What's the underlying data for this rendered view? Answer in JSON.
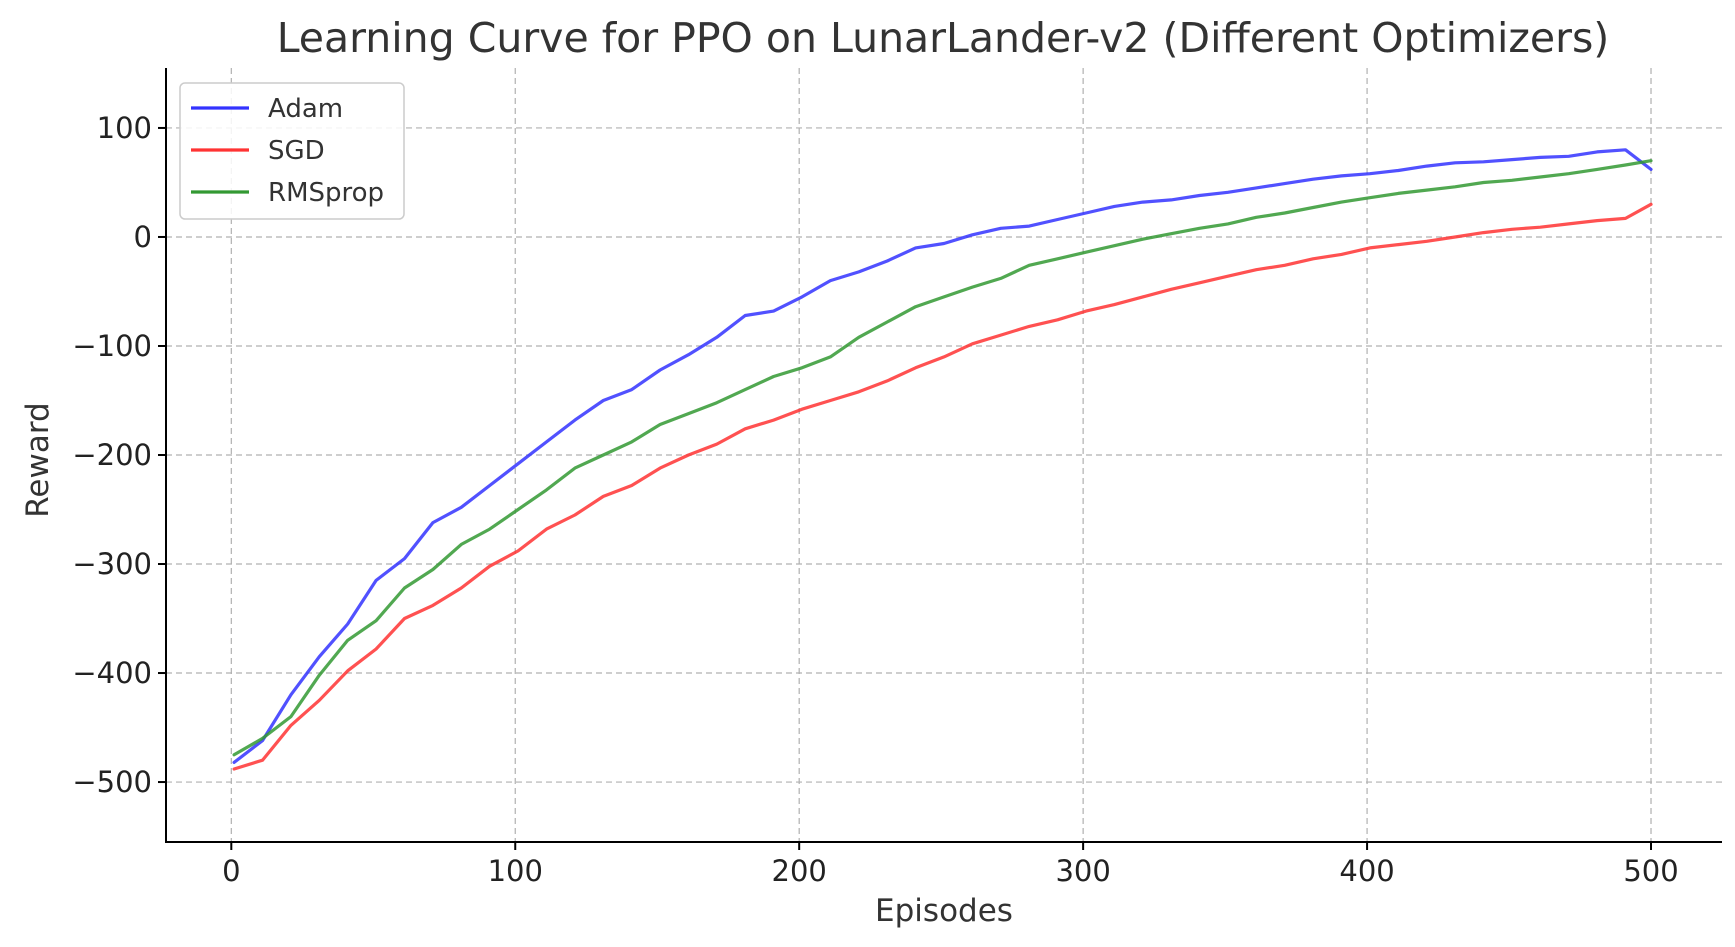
{
  "chart_data": {
    "type": "line",
    "title": "Learning Curve for PPO on LunarLander-v2 (Different Optimizers)",
    "xlabel": "Episodes",
    "ylabel": "Reward",
    "xlim": [
      -23,
      525
    ],
    "ylim": [
      -555,
      155
    ],
    "xticks": [
      0,
      100,
      200,
      300,
      400,
      500
    ],
    "yticks": [
      -500,
      -400,
      -300,
      -200,
      -100,
      0,
      100
    ],
    "xtick_labels": [
      "0",
      "100",
      "200",
      "300",
      "400",
      "500"
    ],
    "ytick_labels": [
      "−500",
      "−400",
      "−300",
      "−200",
      "−100",
      "0",
      "100"
    ],
    "grid": true,
    "legend": "top-left",
    "x": [
      1,
      11,
      21,
      31,
      41,
      51,
      61,
      71,
      81,
      91,
      101,
      111,
      121,
      131,
      141,
      151,
      161,
      171,
      181,
      191,
      201,
      211,
      221,
      231,
      241,
      251,
      261,
      271,
      281,
      291,
      301,
      311,
      321,
      331,
      341,
      351,
      361,
      371,
      381,
      391,
      401,
      411,
      421,
      431,
      441,
      451,
      461,
      471,
      481,
      491,
      500
    ],
    "series": [
      {
        "name": "Adam",
        "color": "#3333ff",
        "values": [
          -482,
          -462,
          -420,
          -385,
          -355,
          -315,
          -295,
          -262,
          -248,
          -228,
          -208,
          -188,
          -168,
          -150,
          -140,
          -122,
          -108,
          -92,
          -72,
          -68,
          -55,
          -40,
          -32,
          -22,
          -10,
          -6,
          2,
          8,
          10,
          16,
          22,
          28,
          32,
          34,
          38,
          41,
          45,
          49,
          53,
          56,
          58,
          61,
          65,
          68,
          69,
          71,
          73,
          74,
          78,
          80,
          62
        ]
      },
      {
        "name": "SGD",
        "color": "#ff3333",
        "values": [
          -488,
          -480,
          -448,
          -425,
          -398,
          -378,
          -350,
          -338,
          -322,
          -302,
          -288,
          -268,
          -255,
          -238,
          -228,
          -212,
          -200,
          -190,
          -176,
          -168,
          -158,
          -150,
          -142,
          -132,
          -120,
          -110,
          -98,
          -90,
          -82,
          -76,
          -68,
          -62,
          -55,
          -48,
          -42,
          -36,
          -30,
          -26,
          -20,
          -16,
          -10,
          -7,
          -4,
          0,
          4,
          7,
          9,
          12,
          15,
          17,
          30
        ]
      },
      {
        "name": "RMSprop",
        "color": "#339933",
        "values": [
          -475,
          -460,
          -440,
          -402,
          -370,
          -352,
          -322,
          -305,
          -282,
          -268,
          -250,
          -232,
          -212,
          -200,
          -188,
          -172,
          -162,
          -152,
          -140,
          -128,
          -120,
          -110,
          -92,
          -78,
          -64,
          -55,
          -46,
          -38,
          -26,
          -20,
          -14,
          -8,
          -2,
          3,
          8,
          12,
          18,
          22,
          27,
          32,
          36,
          40,
          43,
          46,
          50,
          52,
          55,
          58,
          62,
          66,
          70
        ]
      }
    ]
  }
}
